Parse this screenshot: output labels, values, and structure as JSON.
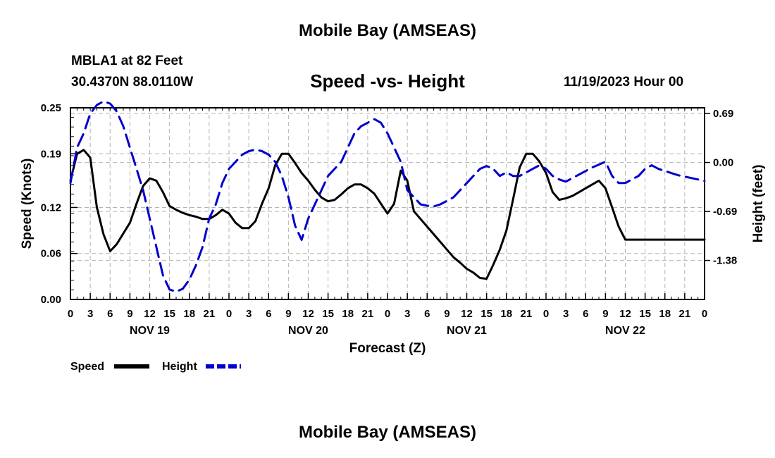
{
  "header": {
    "title": "Mobile Bay (AMSEAS)",
    "station": "MBLA1 at 82 Feet",
    "coords": "30.4370N  88.0110W",
    "subtitle": "Speed -vs- Height",
    "datetime": "11/19/2023 Hour 00"
  },
  "footer": {
    "title": "Mobile Bay (AMSEAS)"
  },
  "chart_data": {
    "type": "line",
    "title": "Speed -vs- Height",
    "xlabel": "Forecast (Z)",
    "ylabel": "Speed (Knots)",
    "y2label": "Height (feet)",
    "xlim": [
      0,
      96
    ],
    "ylim": [
      0,
      0.25
    ],
    "y2lim": [
      -1.93,
      0.77
    ],
    "xticks": [
      0,
      3,
      6,
      9,
      12,
      15,
      18,
      21,
      24,
      27,
      30,
      33,
      36,
      39,
      42,
      45,
      48,
      51,
      54,
      57,
      60,
      63,
      66,
      69,
      72,
      75,
      78,
      81,
      84,
      87,
      90,
      93,
      96
    ],
    "xtick_labels": [
      "0",
      "3",
      "6",
      "9",
      "12",
      "15",
      "18",
      "21",
      "0",
      "3",
      "6",
      "9",
      "12",
      "15",
      "18",
      "21",
      "0",
      "3",
      "6",
      "9",
      "12",
      "15",
      "18",
      "21",
      "0",
      "3",
      "6",
      "9",
      "12",
      "15",
      "18",
      "21",
      "0"
    ],
    "date_labels": [
      {
        "x": 12,
        "label": "NOV 19"
      },
      {
        "x": 36,
        "label": "NOV 20"
      },
      {
        "x": 60,
        "label": "NOV 21"
      },
      {
        "x": 84,
        "label": "NOV 22"
      }
    ],
    "yticks": [
      0.0,
      0.06,
      0.12,
      0.19,
      0.25
    ],
    "ytick_labels": [
      "0.00",
      "0.06",
      "0.12",
      "0.19",
      "0.25"
    ],
    "y2ticks": [
      0.69,
      0.0,
      -0.69,
      -1.38
    ],
    "y2tick_labels": [
      "0.69",
      "0.00",
      "-0.69",
      "-1.38"
    ],
    "grid": true,
    "legend": "bottom-left",
    "series": [
      {
        "name": "Speed",
        "axis": "left",
        "color": "#000000",
        "dash": "solid",
        "x": [
          0,
          1,
          2,
          3,
          4,
          5,
          6,
          7,
          8,
          9,
          10,
          11,
          12,
          13,
          14,
          15,
          16,
          17,
          18,
          19,
          20,
          21,
          22,
          23,
          24,
          25,
          26,
          27,
          28,
          29,
          30,
          31,
          32,
          33,
          34,
          35,
          36,
          37,
          38,
          39,
          40,
          41,
          42,
          43,
          44,
          45,
          46,
          47,
          48,
          49,
          50,
          51,
          52,
          53,
          54,
          55,
          56,
          57,
          58,
          59,
          60,
          61,
          62,
          63,
          64,
          65,
          66,
          67,
          68,
          69,
          70,
          71,
          72,
          73,
          74,
          75,
          76,
          77,
          78,
          79,
          80,
          81,
          82,
          83,
          84,
          85,
          86,
          87,
          88,
          89,
          90,
          91,
          92,
          93,
          94,
          95,
          96
        ],
        "y": [
          0.155,
          0.19,
          0.195,
          0.185,
          0.12,
          0.085,
          0.063,
          0.072,
          0.086,
          0.1,
          0.125,
          0.148,
          0.158,
          0.155,
          0.14,
          0.122,
          0.117,
          0.113,
          0.11,
          0.108,
          0.105,
          0.105,
          0.11,
          0.117,
          0.112,
          0.1,
          0.093,
          0.093,
          0.102,
          0.125,
          0.145,
          0.175,
          0.19,
          0.19,
          0.178,
          0.165,
          0.155,
          0.143,
          0.133,
          0.128,
          0.13,
          0.137,
          0.145,
          0.15,
          0.15,
          0.145,
          0.138,
          0.125,
          0.112,
          0.125,
          0.168,
          0.155,
          0.115,
          0.105,
          0.095,
          0.085,
          0.075,
          0.065,
          0.055,
          0.048,
          0.04,
          0.035,
          0.028,
          0.027,
          0.045,
          0.065,
          0.09,
          0.13,
          0.172,
          0.19,
          0.19,
          0.18,
          0.165,
          0.14,
          0.13,
          0.132,
          0.135,
          0.14,
          0.145,
          0.15,
          0.155,
          0.145,
          0.12,
          0.095,
          0.078,
          0.078,
          0.078,
          0.078,
          0.078,
          0.078,
          0.078,
          0.078,
          0.078,
          0.078,
          0.078,
          0.078,
          0.078
        ]
      },
      {
        "name": "Height",
        "axis": "right",
        "color": "#0000cc",
        "dash": "dashed",
        "x": [
          0,
          1,
          2,
          3,
          4,
          5,
          6,
          7,
          8,
          9,
          10,
          11,
          12,
          13,
          14,
          15,
          16,
          17,
          18,
          19,
          20,
          21,
          22,
          23,
          24,
          25,
          26,
          27,
          28,
          29,
          30,
          31,
          32,
          33,
          34,
          35,
          36,
          37,
          38,
          39,
          40,
          41,
          42,
          43,
          44,
          45,
          46,
          47,
          48,
          49,
          50,
          51,
          52,
          53,
          54,
          55,
          56,
          57,
          58,
          59,
          60,
          61,
          62,
          63,
          64,
          65,
          66,
          67,
          68,
          69,
          70,
          71,
          72,
          73,
          74,
          75,
          76,
          77,
          78,
          79,
          80,
          81,
          82,
          83,
          84,
          85,
          86,
          87,
          88,
          89,
          90,
          91,
          92,
          93,
          94,
          95,
          96
        ],
        "y": [
          -0.29,
          0.21,
          0.41,
          0.69,
          0.81,
          0.86,
          0.83,
          0.72,
          0.51,
          0.21,
          -0.09,
          -0.39,
          -0.79,
          -1.19,
          -1.59,
          -1.79,
          -1.82,
          -1.78,
          -1.65,
          -1.45,
          -1.19,
          -0.79,
          -0.59,
          -0.29,
          -0.09,
          0.01,
          0.11,
          0.16,
          0.18,
          0.16,
          0.11,
          0.01,
          -0.19,
          -0.49,
          -0.89,
          -1.09,
          -0.79,
          -0.59,
          -0.39,
          -0.19,
          -0.09,
          0.01,
          0.21,
          0.41,
          0.51,
          0.56,
          0.61,
          0.56,
          0.41,
          0.21,
          0.01,
          -0.39,
          -0.49,
          -0.59,
          -0.61,
          -0.62,
          -0.59,
          -0.54,
          -0.49,
          -0.39,
          -0.29,
          -0.19,
          -0.09,
          -0.05,
          -0.09,
          -0.19,
          -0.14,
          -0.19,
          -0.19,
          -0.14,
          -0.09,
          -0.04,
          -0.09,
          -0.19,
          -0.24,
          -0.27,
          -0.22,
          -0.17,
          -0.12,
          -0.07,
          -0.03,
          0.01,
          -0.19,
          -0.29,
          -0.29,
          -0.24,
          -0.19,
          -0.09,
          -0.04,
          -0.09,
          -0.12,
          -0.15,
          -0.18,
          -0.2,
          -0.22,
          -0.24,
          -0.26
        ]
      }
    ]
  }
}
